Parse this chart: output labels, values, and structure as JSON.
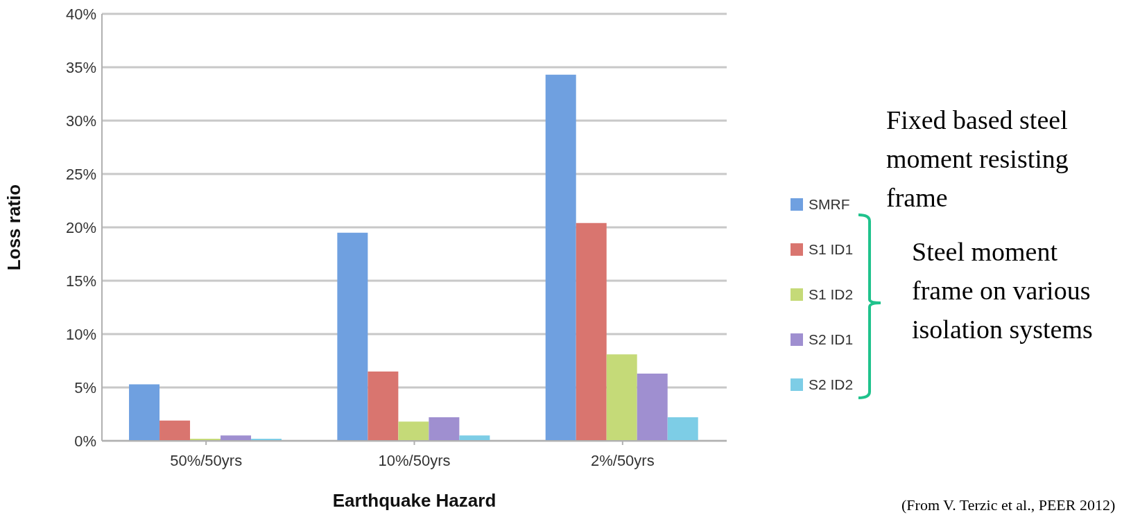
{
  "chart_data": {
    "type": "bar",
    "xlabel": "Earthquake Hazard",
    "ylabel": "Loss ratio",
    "categories": [
      "50%/50yrs",
      "10%/50yrs",
      "2%/50yrs"
    ],
    "series": [
      {
        "name": "SMRF",
        "color": "#6fa0e0",
        "values": [
          5.3,
          19.5,
          34.3
        ]
      },
      {
        "name": "S1 ID1",
        "color": "#d9756f",
        "values": [
          1.9,
          6.5,
          20.4
        ]
      },
      {
        "name": "S1 ID2",
        "color": "#c5da78",
        "values": [
          0.2,
          1.8,
          8.1
        ]
      },
      {
        "name": "S2 ID1",
        "color": "#9f8fd0",
        "values": [
          0.5,
          2.2,
          6.3
        ]
      },
      {
        "name": "S2 ID2",
        "color": "#7dcde6",
        "values": [
          0.2,
          0.5,
          2.2
        ]
      }
    ],
    "ylim": [
      0,
      40
    ],
    "yticks": [
      {
        "value": 0,
        "label": "0%"
      },
      {
        "value": 5,
        "label": "5%"
      },
      {
        "value": 10,
        "label": "10%"
      },
      {
        "value": 15,
        "label": "15%"
      },
      {
        "value": 20,
        "label": "20%"
      },
      {
        "value": 25,
        "label": "25%"
      },
      {
        "value": 30,
        "label": "30%"
      },
      {
        "value": 35,
        "label": "35%"
      },
      {
        "value": 40,
        "label": "40%"
      }
    ],
    "grid": "y",
    "legend": "right",
    "annotations": [
      "Fixed based steel moment resisting frame",
      "Steel moment frame on various isolation systems",
      "(From V. Terzic et al., PEER 2012)"
    ]
  }
}
